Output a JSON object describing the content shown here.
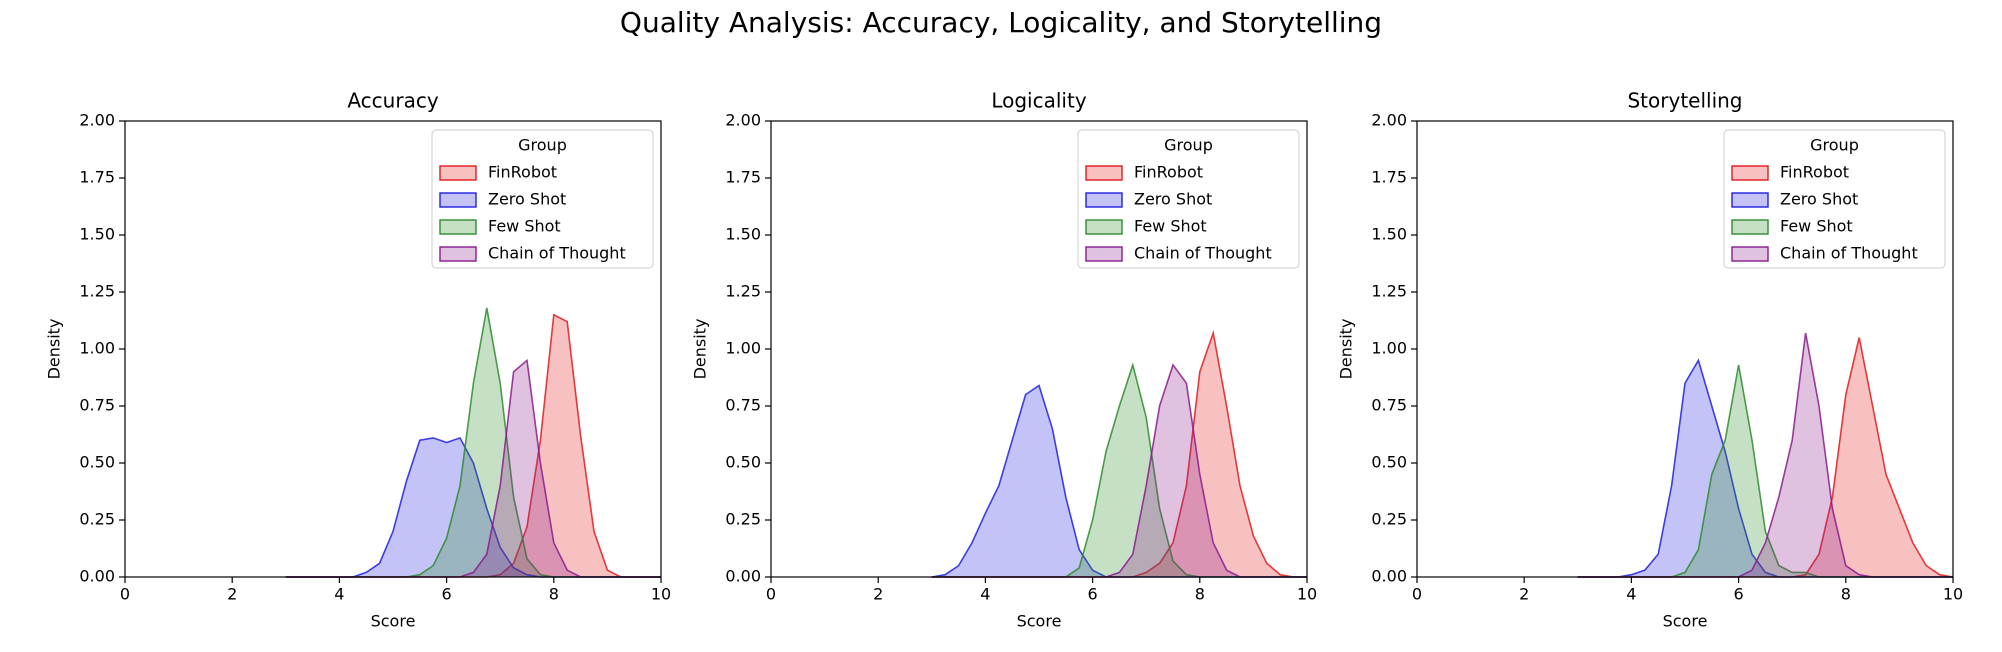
{
  "title": "Quality Analysis: Accuracy, Logicality, and Storytelling",
  "chart_data": [
    {
      "type": "area",
      "title": "Accuracy",
      "x_label": "Score",
      "y_label": "Density",
      "x": [
        3,
        3.25,
        3.5,
        3.75,
        4,
        4.25,
        4.5,
        4.75,
        5,
        5.25,
        5.5,
        5.75,
        6,
        6.25,
        6.5,
        6.75,
        7,
        7.25,
        7.5,
        7.75,
        8,
        8.25,
        8.5,
        8.75,
        9,
        9.25,
        9.5,
        9.75,
        10
      ],
      "series": [
        {
          "name": "FinRobot",
          "color": "#e31a1c",
          "values": [
            0,
            0,
            0,
            0,
            0,
            0,
            0,
            0,
            0,
            0,
            0,
            0,
            0,
            0,
            0,
            0,
            0.01,
            0.06,
            0.22,
            0.6,
            1.15,
            1.12,
            0.62,
            0.2,
            0.03,
            0,
            0,
            0,
            0
          ]
        },
        {
          "name": "Zero Shot",
          "color": "#2020e0",
          "values": [
            0,
            0,
            0,
            0,
            0,
            0,
            0.02,
            0.06,
            0.2,
            0.42,
            0.6,
            0.61,
            0.59,
            0.61,
            0.5,
            0.3,
            0.13,
            0.04,
            0.01,
            0,
            0,
            0,
            0,
            0,
            0,
            0,
            0,
            0,
            0
          ]
        },
        {
          "name": "Few Shot",
          "color": "#2e8b2e",
          "values": [
            0,
            0,
            0,
            0,
            0,
            0,
            0,
            0,
            0,
            0,
            0.01,
            0.05,
            0.17,
            0.4,
            0.85,
            1.18,
            0.85,
            0.35,
            0.08,
            0.01,
            0,
            0,
            0,
            0,
            0,
            0,
            0,
            0,
            0
          ]
        },
        {
          "name": "Chain of Thought",
          "color": "#8b1a8b",
          "values": [
            0,
            0,
            0,
            0,
            0,
            0,
            0,
            0,
            0,
            0,
            0,
            0,
            0,
            0,
            0.02,
            0.1,
            0.4,
            0.9,
            0.95,
            0.5,
            0.15,
            0.03,
            0,
            0,
            0,
            0,
            0,
            0,
            0
          ]
        }
      ],
      "xlim": [
        0,
        10
      ],
      "xticks": [
        0,
        2,
        4,
        6,
        8,
        10
      ],
      "ylim": [
        0,
        2
      ],
      "yticks": [
        {
          "value": 0,
          "label": "0.00"
        },
        {
          "value": 0.25,
          "label": "0.25"
        },
        {
          "value": 0.5,
          "label": "0.50"
        },
        {
          "value": 0.75,
          "label": "0.75"
        },
        {
          "value": 1,
          "label": "1.00"
        },
        {
          "value": 1.25,
          "label": "1.25"
        },
        {
          "value": 1.5,
          "label": "1.50"
        },
        {
          "value": 1.75,
          "label": "1.75"
        },
        {
          "value": 2,
          "label": "2.00"
        }
      ],
      "legend_title": "Group",
      "legend": "upper right"
    },
    {
      "type": "area",
      "title": "Logicality",
      "x_label": "Score",
      "y_label": "Density",
      "x": [
        3,
        3.25,
        3.5,
        3.75,
        4,
        4.25,
        4.5,
        4.75,
        5,
        5.25,
        5.5,
        5.75,
        6,
        6.25,
        6.5,
        6.75,
        7,
        7.25,
        7.5,
        7.75,
        8,
        8.25,
        8.5,
        8.75,
        9,
        9.25,
        9.5,
        9.75,
        10
      ],
      "series": [
        {
          "name": "FinRobot",
          "color": "#e31a1c",
          "values": [
            0,
            0,
            0,
            0,
            0,
            0,
            0,
            0,
            0,
            0,
            0,
            0,
            0,
            0,
            0,
            0,
            0.02,
            0.06,
            0.15,
            0.4,
            0.9,
            1.07,
            0.75,
            0.4,
            0.18,
            0.06,
            0.01,
            0,
            0
          ]
        },
        {
          "name": "Zero Shot",
          "color": "#2020e0",
          "values": [
            0,
            0.01,
            0.05,
            0.15,
            0.28,
            0.4,
            0.6,
            0.8,
            0.84,
            0.65,
            0.35,
            0.12,
            0.03,
            0,
            0,
            0,
            0,
            0,
            0,
            0,
            0,
            0,
            0,
            0,
            0,
            0,
            0,
            0,
            0
          ]
        },
        {
          "name": "Few Shot",
          "color": "#2e8b2e",
          "values": [
            0,
            0,
            0,
            0,
            0,
            0,
            0,
            0,
            0,
            0,
            0,
            0.04,
            0.25,
            0.55,
            0.75,
            0.93,
            0.7,
            0.3,
            0.07,
            0.01,
            0,
            0,
            0,
            0,
            0,
            0,
            0,
            0,
            0
          ]
        },
        {
          "name": "Chain of Thought",
          "color": "#8b1a8b",
          "values": [
            0,
            0,
            0,
            0,
            0,
            0,
            0,
            0,
            0,
            0,
            0,
            0,
            0,
            0,
            0.02,
            0.1,
            0.4,
            0.75,
            0.93,
            0.85,
            0.45,
            0.15,
            0.03,
            0,
            0,
            0,
            0,
            0,
            0
          ]
        }
      ],
      "xlim": [
        0,
        10
      ],
      "xticks": [
        0,
        2,
        4,
        6,
        8,
        10
      ],
      "ylim": [
        0,
        2
      ],
      "yticks": [
        {
          "value": 0,
          "label": "0.00"
        },
        {
          "value": 0.25,
          "label": "0.25"
        },
        {
          "value": 0.5,
          "label": "0.50"
        },
        {
          "value": 0.75,
          "label": "0.75"
        },
        {
          "value": 1,
          "label": "1.00"
        },
        {
          "value": 1.25,
          "label": "1.25"
        },
        {
          "value": 1.5,
          "label": "1.50"
        },
        {
          "value": 1.75,
          "label": "1.75"
        },
        {
          "value": 2,
          "label": "2.00"
        }
      ],
      "legend_title": "Group",
      "legend": "upper right"
    },
    {
      "type": "area",
      "title": "Storytelling",
      "x_label": "Score",
      "y_label": "Density",
      "x": [
        3,
        3.25,
        3.5,
        3.75,
        4,
        4.25,
        4.5,
        4.75,
        5,
        5.25,
        5.5,
        5.75,
        6,
        6.25,
        6.5,
        6.75,
        7,
        7.25,
        7.5,
        7.75,
        8,
        8.25,
        8.5,
        8.75,
        9,
        9.25,
        9.5,
        9.75,
        10
      ],
      "series": [
        {
          "name": "FinRobot",
          "color": "#e31a1c",
          "values": [
            0,
            0,
            0,
            0,
            0,
            0,
            0,
            0,
            0,
            0,
            0,
            0,
            0,
            0,
            0,
            0,
            0,
            0.01,
            0.1,
            0.35,
            0.8,
            1.05,
            0.75,
            0.45,
            0.3,
            0.15,
            0.05,
            0.01,
            0
          ]
        },
        {
          "name": "Zero Shot",
          "color": "#2020e0",
          "values": [
            0,
            0,
            0,
            0,
            0.01,
            0.03,
            0.1,
            0.4,
            0.85,
            0.95,
            0.75,
            0.55,
            0.3,
            0.1,
            0.02,
            0,
            0,
            0,
            0,
            0,
            0,
            0,
            0,
            0,
            0,
            0,
            0,
            0,
            0
          ]
        },
        {
          "name": "Few Shot",
          "color": "#2e8b2e",
          "values": [
            0,
            0,
            0,
            0,
            0,
            0,
            0,
            0,
            0.02,
            0.12,
            0.45,
            0.6,
            0.93,
            0.6,
            0.2,
            0.05,
            0.02,
            0.02,
            0,
            0,
            0,
            0,
            0,
            0,
            0,
            0,
            0,
            0,
            0
          ]
        },
        {
          "name": "Chain of Thought",
          "color": "#8b1a8b",
          "values": [
            0,
            0,
            0,
            0,
            0,
            0,
            0,
            0,
            0,
            0,
            0,
            0,
            0,
            0.03,
            0.15,
            0.35,
            0.6,
            1.07,
            0.75,
            0.3,
            0.05,
            0.01,
            0,
            0,
            0,
            0,
            0,
            0,
            0
          ]
        }
      ],
      "xlim": [
        0,
        10
      ],
      "xticks": [
        0,
        2,
        4,
        6,
        8,
        10
      ],
      "ylim": [
        0,
        2
      ],
      "yticks": [
        {
          "value": 0,
          "label": "0.00"
        },
        {
          "value": 0.25,
          "label": "0.25"
        },
        {
          "value": 0.5,
          "label": "0.50"
        },
        {
          "value": 0.75,
          "label": "0.75"
        },
        {
          "value": 1,
          "label": "1.00"
        },
        {
          "value": 1.25,
          "label": "1.25"
        },
        {
          "value": 1.5,
          "label": "1.50"
        },
        {
          "value": 1.75,
          "label": "1.75"
        },
        {
          "value": 2,
          "label": "2.00"
        }
      ],
      "legend_title": "Group",
      "legend": "upper right"
    }
  ]
}
